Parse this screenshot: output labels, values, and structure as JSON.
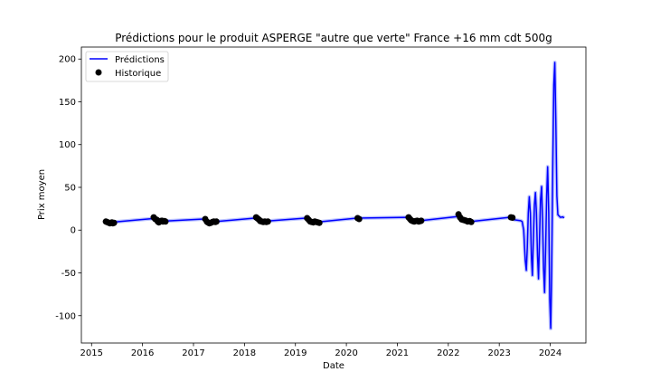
{
  "chart_data": {
    "type": "line",
    "title": "Prédictions pour le produit ASPERGE \"autre que verte\" France +16 mm cdt 500g",
    "xlabel": "Date",
    "ylabel": "Prix moyen",
    "xlim": [
      2014.8,
      2024.7
    ],
    "ylim": [
      -132,
      214
    ],
    "x_ticks": [
      "2015",
      "2016",
      "2017",
      "2018",
      "2019",
      "2020",
      "2021",
      "2022",
      "2023",
      "2024"
    ],
    "y_ticks": [
      "-100",
      "-50",
      "0",
      "50",
      "100",
      "150",
      "200"
    ],
    "grid": false,
    "legend": {
      "placement": "top-left",
      "items": [
        "Prédictions",
        "Historique"
      ]
    },
    "colors": {
      "predictions": "#0000ff",
      "band": "#aab4ff",
      "historique": "#000000"
    },
    "series": [
      {
        "name": "Prédictions",
        "points": [
          [
            2015.28,
            9.5
          ],
          [
            2015.45,
            9.5
          ],
          [
            2016.2,
            13.5
          ],
          [
            2016.25,
            11.5
          ],
          [
            2016.45,
            10.5
          ],
          [
            2017.2,
            13.0
          ],
          [
            2017.25,
            10.0
          ],
          [
            2017.45,
            10.0
          ],
          [
            2018.2,
            14.0
          ],
          [
            2018.25,
            12.0
          ],
          [
            2018.45,
            10.5
          ],
          [
            2019.2,
            14.0
          ],
          [
            2019.25,
            11.0
          ],
          [
            2019.45,
            9.5
          ],
          [
            2020.2,
            14.0
          ],
          [
            2021.2,
            15.0
          ],
          [
            2021.25,
            12.0
          ],
          [
            2021.45,
            11.0
          ],
          [
            2022.2,
            16.0
          ],
          [
            2022.25,
            12.0
          ],
          [
            2022.45,
            10.0
          ],
          [
            2023.2,
            15.0
          ],
          [
            2023.3,
            12.0
          ],
          [
            2023.42,
            11.0
          ],
          [
            2023.45,
            10.0
          ],
          [
            2023.48,
            0.0
          ],
          [
            2023.51,
            -35.0
          ],
          [
            2023.53,
            -47.0
          ],
          [
            2023.55,
            -20.0
          ],
          [
            2023.57,
            20.0
          ],
          [
            2023.59,
            39.0
          ],
          [
            2023.61,
            20.0
          ],
          [
            2023.63,
            -30.0
          ],
          [
            2023.65,
            -53.0
          ],
          [
            2023.67,
            -10.0
          ],
          [
            2023.69,
            30.0
          ],
          [
            2023.71,
            44.0
          ],
          [
            2023.73,
            20.0
          ],
          [
            2023.75,
            -30.0
          ],
          [
            2023.77,
            -57.0
          ],
          [
            2023.79,
            -10.0
          ],
          [
            2023.81,
            35.0
          ],
          [
            2023.83,
            51.0
          ],
          [
            2023.85,
            10.0
          ],
          [
            2023.87,
            -45.0
          ],
          [
            2023.89,
            -73.0
          ],
          [
            2023.91,
            -20.0
          ],
          [
            2023.93,
            40.0
          ],
          [
            2023.95,
            74.0
          ],
          [
            2023.97,
            20.0
          ],
          [
            2023.99,
            -80.0
          ],
          [
            2024.01,
            -115.0
          ],
          [
            2024.03,
            -40.0
          ],
          [
            2024.05,
            80.0
          ],
          [
            2024.07,
            170.0
          ],
          [
            2024.09,
            196.0
          ],
          [
            2024.11,
            130.0
          ],
          [
            2024.13,
            40.0
          ],
          [
            2024.15,
            18.0
          ],
          [
            2024.2,
            15.0
          ],
          [
            2024.25,
            15.5
          ],
          [
            2024.27,
            14.0
          ]
        ]
      },
      {
        "name": "Historique",
        "points": [
          [
            2015.28,
            10.0
          ],
          [
            2015.3,
            9.5
          ],
          [
            2015.32,
            9.0
          ],
          [
            2015.34,
            8.5
          ],
          [
            2015.36,
            8.0
          ],
          [
            2015.38,
            8.5
          ],
          [
            2015.4,
            9.0
          ],
          [
            2015.42,
            8.0
          ],
          [
            2015.44,
            8.5
          ],
          [
            2016.22,
            15.0
          ],
          [
            2016.25,
            13.0
          ],
          [
            2016.28,
            12.0
          ],
          [
            2016.3,
            10.0
          ],
          [
            2016.32,
            9.0
          ],
          [
            2016.35,
            10.5
          ],
          [
            2016.38,
            11.0
          ],
          [
            2016.4,
            10.0
          ],
          [
            2016.43,
            10.5
          ],
          [
            2016.45,
            10.0
          ],
          [
            2017.23,
            13.0
          ],
          [
            2017.26,
            10.0
          ],
          [
            2017.28,
            9.0
          ],
          [
            2017.31,
            8.0
          ],
          [
            2017.34,
            8.5
          ],
          [
            2017.37,
            9.5
          ],
          [
            2017.4,
            10.0
          ],
          [
            2017.43,
            9.5
          ],
          [
            2017.45,
            10.0
          ],
          [
            2018.23,
            15.0
          ],
          [
            2018.26,
            13.5
          ],
          [
            2018.29,
            12.0
          ],
          [
            2018.31,
            10.5
          ],
          [
            2018.34,
            10.0
          ],
          [
            2018.37,
            9.5
          ],
          [
            2018.4,
            10.0
          ],
          [
            2018.43,
            9.5
          ],
          [
            2018.46,
            10.0
          ],
          [
            2019.23,
            14.0
          ],
          [
            2019.26,
            12.0
          ],
          [
            2019.29,
            10.0
          ],
          [
            2019.32,
            9.5
          ],
          [
            2019.35,
            9.0
          ],
          [
            2019.38,
            10.0
          ],
          [
            2019.41,
            9.5
          ],
          [
            2019.44,
            9.0
          ],
          [
            2019.47,
            8.5
          ],
          [
            2020.22,
            14.0
          ],
          [
            2020.25,
            13.0
          ],
          [
            2021.22,
            15.0
          ],
          [
            2021.25,
            13.0
          ],
          [
            2021.27,
            11.5
          ],
          [
            2021.3,
            10.5
          ],
          [
            2021.33,
            10.0
          ],
          [
            2021.36,
            10.5
          ],
          [
            2021.39,
            11.0
          ],
          [
            2021.42,
            10.0
          ],
          [
            2021.45,
            10.5
          ],
          [
            2021.47,
            11.0
          ],
          [
            2022.2,
            18.5
          ],
          [
            2022.23,
            15.0
          ],
          [
            2022.26,
            12.5
          ],
          [
            2022.29,
            12.0
          ],
          [
            2022.32,
            11.5
          ],
          [
            2022.35,
            11.0
          ],
          [
            2022.38,
            10.0
          ],
          [
            2022.42,
            10.5
          ],
          [
            2022.45,
            9.5
          ],
          [
            2023.23,
            15.0
          ],
          [
            2023.26,
            14.5
          ]
        ]
      }
    ]
  }
}
